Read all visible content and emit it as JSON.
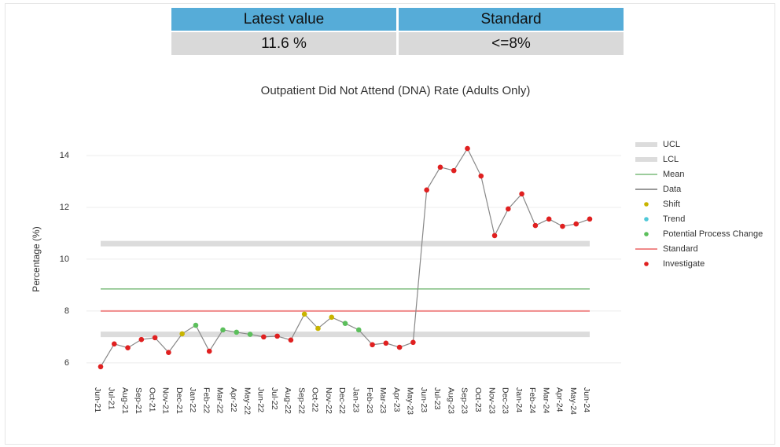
{
  "header": {
    "columns": [
      "Latest value",
      "Standard"
    ],
    "values": [
      "11.6 %",
      "<=8%"
    ]
  },
  "chart_data": {
    "type": "spc",
    "title": "Outpatient Did Not Attend (DNA) Rate (Adults Only)",
    "y_label": "Percentage (%)",
    "categories": [
      "Jun-21",
      "Jul-21",
      "Aug-21",
      "Sep-21",
      "Oct-21",
      "Nov-21",
      "Dec-21",
      "Jan-22",
      "Feb-22",
      "Mar-22",
      "Apr-22",
      "May-22",
      "Jun-22",
      "Jul-22",
      "Aug-22",
      "Sep-22",
      "Oct-22",
      "Nov-22",
      "Dec-22",
      "Jan-23",
      "Feb-23",
      "Mar-23",
      "Apr-23",
      "May-23",
      "Jun-23",
      "Jul-23",
      "Aug-23",
      "Sep-23",
      "Oct-23",
      "Nov-23",
      "Dec-23",
      "Jan-24",
      "Feb-24",
      "Mar-24",
      "Apr-24",
      "May-24",
      "Jun-24"
    ],
    "ylim": [
      5.45,
      15
    ],
    "yticks": [
      6,
      8,
      10,
      12,
      14
    ],
    "grid": true,
    "series": [
      {
        "name": "UCL",
        "kind": "band",
        "color": "#dcdcdc",
        "value": 10.6
      },
      {
        "name": "LCL",
        "kind": "band",
        "color": "#dcdcdc",
        "value": 7.1
      },
      {
        "name": "Mean",
        "kind": "hline",
        "color": "#3a9a3a",
        "value": 8.85
      },
      {
        "name": "Data",
        "kind": "line",
        "color": "#888888",
        "values": [
          5.85,
          6.73,
          6.58,
          6.9,
          6.97,
          6.4,
          7.12,
          7.45,
          6.45,
          7.27,
          7.18,
          7.1,
          7.0,
          7.03,
          6.88,
          7.88,
          7.33,
          7.76,
          7.52,
          7.27,
          6.7,
          6.76,
          6.6,
          6.79,
          12.67,
          13.55,
          13.42,
          14.27,
          13.21,
          10.91,
          11.94,
          12.52,
          11.3,
          11.55,
          11.27,
          11.36,
          11.55
        ]
      },
      {
        "name": "Shift",
        "kind": "points",
        "color": "#c8b400",
        "values": [
          null,
          null,
          null,
          null,
          null,
          null,
          7.12,
          null,
          null,
          null,
          null,
          null,
          null,
          null,
          null,
          7.88,
          7.33,
          7.76,
          null,
          null,
          null,
          null,
          null,
          null,
          null,
          null,
          null,
          null,
          null,
          null,
          null,
          null,
          null,
          null,
          null,
          null,
          null
        ]
      },
      {
        "name": "Trend",
        "kind": "points",
        "color": "#4fc8d8",
        "values": [
          null,
          null,
          null,
          null,
          null,
          null,
          null,
          null,
          null,
          null,
          null,
          null,
          null,
          null,
          null,
          null,
          null,
          null,
          null,
          null,
          null,
          null,
          null,
          null,
          null,
          null,
          null,
          null,
          null,
          null,
          null,
          null,
          null,
          null,
          null,
          null,
          null
        ]
      },
      {
        "name": "Potential Process Change",
        "kind": "points",
        "color": "#5cbf5c",
        "values": [
          null,
          null,
          null,
          null,
          null,
          null,
          null,
          7.45,
          null,
          7.27,
          7.18,
          7.1,
          null,
          null,
          null,
          null,
          null,
          null,
          7.52,
          7.27,
          null,
          null,
          null,
          null,
          null,
          null,
          null,
          null,
          null,
          null,
          null,
          null,
          null,
          null,
          null,
          null,
          null
        ]
      },
      {
        "name": "Standard",
        "kind": "hline",
        "color": "#f08a8a",
        "value": 8
      },
      {
        "name": "Investigate",
        "kind": "points",
        "color": "#e02020",
        "values": [
          5.85,
          6.73,
          6.58,
          6.9,
          6.97,
          6.4,
          null,
          null,
          6.45,
          null,
          null,
          null,
          7.0,
          7.03,
          6.88,
          null,
          null,
          null,
          null,
          null,
          6.7,
          6.76,
          6.6,
          6.79,
          12.67,
          13.55,
          13.42,
          14.27,
          13.21,
          10.91,
          11.94,
          12.52,
          11.3,
          11.55,
          11.27,
          11.36,
          11.55
        ]
      }
    ]
  }
}
